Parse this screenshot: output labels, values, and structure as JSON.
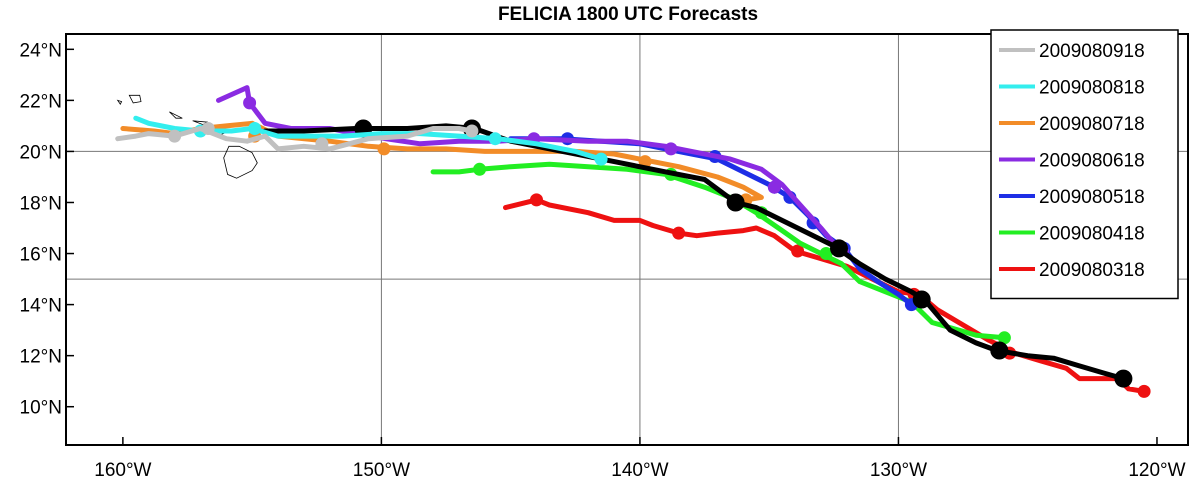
{
  "map": {
    "title": "FELICIA 1800 UTC Forecasts",
    "lon_range": [
      -162.2,
      -118.8
    ],
    "lat_range": [
      8.5,
      24.6
    ],
    "grid_lons": [
      -150,
      -140,
      -130
    ],
    "grid_lats": [
      15,
      20
    ],
    "lon_ticks": [
      {
        "value": -160,
        "label": "160°W"
      },
      {
        "value": -150,
        "label": "150°W"
      },
      {
        "value": -140,
        "label": "140°W"
      },
      {
        "value": -130,
        "label": "130°W"
      },
      {
        "value": -120,
        "label": "120°W"
      }
    ],
    "lat_ticks": [
      {
        "value": 10,
        "label": "10°N"
      },
      {
        "value": 12,
        "label": "12°N"
      },
      {
        "value": 14,
        "label": "14°N"
      },
      {
        "value": 16,
        "label": "16°N"
      },
      {
        "value": 18,
        "label": "18°N"
      },
      {
        "value": 20,
        "label": "20°N"
      },
      {
        "value": 22,
        "label": "22°N"
      },
      {
        "value": 24,
        "label": "24°N"
      }
    ],
    "legend_position": "top-right",
    "legend": [
      {
        "label": "2009080918",
        "color": "#c0c0c0"
      },
      {
        "label": "2009080818",
        "color": "#33eeee"
      },
      {
        "label": "2009080718",
        "color": "#f28c28"
      },
      {
        "label": "2009080618",
        "color": "#8a2be2"
      },
      {
        "label": "2009080518",
        "color": "#1e2ee6"
      },
      {
        "label": "2009080418",
        "color": "#22ee22"
      },
      {
        "label": "2009080318",
        "color": "#ee1111"
      }
    ],
    "tracks": [
      {
        "color": "#ee1111",
        "points": [
          [
            -145.2,
            17.8
          ],
          [
            -144,
            18.1
          ],
          [
            -143.5,
            17.9
          ],
          [
            -142,
            17.6
          ],
          [
            -141,
            17.3
          ],
          [
            -140,
            17.3
          ],
          [
            -139.5,
            17.1
          ],
          [
            -138.5,
            16.8
          ],
          [
            -137.8,
            16.7
          ],
          [
            -137,
            16.8
          ],
          [
            -136,
            16.9
          ],
          [
            -135.5,
            17
          ],
          [
            -134.8,
            16.7
          ],
          [
            -134,
            16.1
          ],
          [
            -133,
            15.8
          ],
          [
            -132,
            15.5
          ],
          [
            -131,
            15
          ],
          [
            -130,
            14.5
          ],
          [
            -129.2,
            14.4
          ],
          [
            -128.5,
            13.8
          ],
          [
            -127.5,
            13.2
          ],
          [
            -126.5,
            12.6
          ],
          [
            -125.5,
            12.1
          ],
          [
            -124.5,
            11.8
          ],
          [
            -123.5,
            11.5
          ],
          [
            -123,
            11.1
          ],
          [
            -122,
            11.1
          ],
          [
            -121.5,
            11.1
          ],
          [
            -121.1,
            10.7
          ],
          [
            -120.5,
            10.6
          ]
        ],
        "dots": [
          [
            -144,
            18.1
          ],
          [
            -138.5,
            16.8
          ],
          [
            -133.9,
            16.1
          ],
          [
            -129.4,
            14.4
          ],
          [
            -125.7,
            12.1
          ],
          [
            -120.5,
            10.6
          ]
        ]
      },
      {
        "color": "#22ee22",
        "points": [
          [
            -148,
            19.2
          ],
          [
            -147,
            19.2
          ],
          [
            -146.2,
            19.3
          ],
          [
            -145,
            19.4
          ],
          [
            -143.5,
            19.5
          ],
          [
            -142,
            19.4
          ],
          [
            -140.5,
            19.3
          ],
          [
            -139,
            19.1
          ],
          [
            -137.5,
            18.6
          ],
          [
            -136.5,
            18.2
          ],
          [
            -135.5,
            17.6
          ],
          [
            -134.5,
            16.9
          ],
          [
            -133.8,
            16.4
          ],
          [
            -133,
            16
          ],
          [
            -132.2,
            15.6
          ],
          [
            -131.5,
            14.9
          ],
          [
            -130.5,
            14.5
          ],
          [
            -129.5,
            14.1
          ],
          [
            -128.7,
            13.3
          ],
          [
            -128,
            13.1
          ],
          [
            -127,
            12.8
          ],
          [
            -125.9,
            12.7
          ]
        ],
        "dots": [
          [
            -146.2,
            19.3
          ],
          [
            -138.8,
            19.1
          ],
          [
            -135.3,
            17.6
          ],
          [
            -132.8,
            16
          ],
          [
            -125.9,
            12.7
          ]
        ]
      },
      {
        "color": "#1e2ee6",
        "points": [
          [
            -145,
            20.5
          ],
          [
            -144,
            20.5
          ],
          [
            -143,
            20.5
          ],
          [
            -141.5,
            20.4
          ],
          [
            -140,
            20.3
          ],
          [
            -139,
            20.1
          ],
          [
            -138,
            19.9
          ],
          [
            -137,
            19.7
          ],
          [
            -136,
            19.2
          ],
          [
            -135,
            18.7
          ],
          [
            -134.2,
            18.2
          ],
          [
            -133.5,
            17.5
          ],
          [
            -132.8,
            16.7
          ],
          [
            -132.1,
            16.2
          ],
          [
            -131.5,
            15.4
          ],
          [
            -130.8,
            14.9
          ],
          [
            -130,
            14.4
          ],
          [
            -129.5,
            14
          ]
        ],
        "dots": [
          [
            -142.8,
            20.5
          ],
          [
            -137.1,
            19.8
          ],
          [
            -134.8,
            18.6
          ],
          [
            -134.2,
            18.2
          ],
          [
            -133.3,
            17.2
          ],
          [
            -132.1,
            16.2
          ],
          [
            -129.5,
            14
          ]
        ]
      },
      {
        "color": "#8a2be2",
        "points": [
          [
            -156.3,
            22
          ],
          [
            -155.2,
            22.5
          ],
          [
            -155.1,
            21.9
          ],
          [
            -154.5,
            21.1
          ],
          [
            -153.5,
            20.9
          ],
          [
            -152,
            20.9
          ],
          [
            -150.5,
            20.6
          ],
          [
            -148.5,
            20.3
          ],
          [
            -147,
            20.4
          ],
          [
            -145.5,
            20.4
          ],
          [
            -144,
            20.5
          ],
          [
            -142,
            20.4
          ],
          [
            -140.5,
            20.4
          ],
          [
            -139,
            20.2
          ],
          [
            -138,
            20
          ],
          [
            -136.5,
            19.7
          ],
          [
            -135.3,
            19.3
          ],
          [
            -134.5,
            18.7
          ],
          [
            -133.8,
            17.9
          ],
          [
            -133,
            17
          ],
          [
            -132.5,
            16.4
          ],
          [
            -132,
            16.1
          ]
        ],
        "dots": [
          [
            -155.1,
            21.9
          ],
          [
            -144.1,
            20.5
          ],
          [
            -138.8,
            20.1
          ],
          [
            -134.8,
            18.6
          ],
          [
            -132.2,
            16.2
          ]
        ]
      },
      {
        "color": "#f28c28",
        "points": [
          [
            -160,
            20.9
          ],
          [
            -158.8,
            20.8
          ],
          [
            -158,
            20.7
          ],
          [
            -157,
            20.9
          ],
          [
            -156,
            21
          ],
          [
            -155,
            21.1
          ],
          [
            -154,
            20.6
          ],
          [
            -152,
            20.4
          ],
          [
            -150.5,
            20.2
          ],
          [
            -149,
            20.1
          ],
          [
            -147.5,
            20.1
          ],
          [
            -146,
            20
          ],
          [
            -144,
            20
          ],
          [
            -142.5,
            20
          ],
          [
            -141,
            19.9
          ],
          [
            -140,
            19.7
          ],
          [
            -138.5,
            19.4
          ],
          [
            -137,
            19
          ],
          [
            -136,
            18.6
          ],
          [
            -135.3,
            18.2
          ],
          [
            -135.9,
            18.1
          ]
        ],
        "dots": [
          [
            -154.9,
            20.6
          ],
          [
            -149.9,
            20.1
          ],
          [
            -139.8,
            19.6
          ],
          [
            -135.9,
            18.1
          ]
        ]
      },
      {
        "color": "#000000",
        "points": [
          [
            -154.5,
            20.8
          ],
          [
            -153,
            20.8
          ],
          [
            -151,
            20.9
          ],
          [
            -149,
            20.9
          ],
          [
            -147.5,
            21
          ],
          [
            -146.4,
            20.9
          ],
          [
            -145,
            20.4
          ],
          [
            -143,
            20
          ],
          [
            -141,
            19.6
          ],
          [
            -139,
            19.2
          ],
          [
            -137.5,
            18.9
          ],
          [
            -136.3,
            18
          ],
          [
            -135.5,
            17.8
          ],
          [
            -134.5,
            17.3
          ],
          [
            -133.5,
            16.8
          ],
          [
            -132.5,
            16.3
          ],
          [
            -131.5,
            15.6
          ],
          [
            -130.5,
            15
          ],
          [
            -129.5,
            14.5
          ],
          [
            -129,
            14.2
          ],
          [
            -128.5,
            13.6
          ],
          [
            -128,
            13
          ],
          [
            -127,
            12.5
          ],
          [
            -126.2,
            12.2
          ],
          [
            -125,
            12
          ],
          [
            -124,
            11.9
          ],
          [
            -123,
            11.6
          ],
          [
            -122,
            11.3
          ],
          [
            -121.3,
            11.1
          ]
        ],
        "dots": [
          [
            -150.7,
            20.9
          ],
          [
            -146.5,
            20.9
          ],
          [
            -136.3,
            18
          ],
          [
            -132.3,
            16.2
          ],
          [
            -129.1,
            14.2
          ],
          [
            -126.1,
            12.2
          ],
          [
            -121.3,
            11.1
          ]
        ],
        "dot_r": 9
      },
      {
        "color": "#33eeee",
        "points": [
          [
            -159.5,
            21.3
          ],
          [
            -159,
            21.1
          ],
          [
            -158,
            20.9
          ],
          [
            -157,
            20.8
          ],
          [
            -155.8,
            20.8
          ],
          [
            -155,
            20.9
          ],
          [
            -154,
            20.6
          ],
          [
            -153,
            20.6
          ],
          [
            -151.5,
            20.6
          ],
          [
            -150,
            20.7
          ],
          [
            -148.5,
            20.7
          ],
          [
            -147,
            20.6
          ],
          [
            -145.5,
            20.5
          ],
          [
            -144,
            20.3
          ],
          [
            -142.5,
            20
          ],
          [
            -141.5,
            19.7
          ]
        ],
        "dots": [
          [
            -157,
            20.8
          ],
          [
            -154.9,
            20.9
          ],
          [
            -145.6,
            20.5
          ],
          [
            -141.5,
            19.7
          ]
        ]
      },
      {
        "color": "#c0c0c0",
        "points": [
          [
            -160.2,
            20.5
          ],
          [
            -159.5,
            20.6
          ],
          [
            -159,
            20.7
          ],
          [
            -158,
            20.6
          ],
          [
            -157,
            20.9
          ],
          [
            -156,
            20.5
          ],
          [
            -155.2,
            20.4
          ],
          [
            -154.5,
            20.6
          ],
          [
            -154,
            20.1
          ],
          [
            -153,
            20.2
          ],
          [
            -152,
            20.1
          ],
          [
            -150.5,
            20.5
          ],
          [
            -149,
            20.6
          ],
          [
            -148,
            20.9
          ],
          [
            -147,
            20.9
          ],
          [
            -146.5,
            20.8
          ]
        ],
        "dots": [
          [
            -158,
            20.6
          ],
          [
            -156.7,
            20.9
          ],
          [
            -152.3,
            20.3
          ],
          [
            -146.5,
            20.8
          ]
        ]
      }
    ],
    "islands": [
      [
        [
          -155.9,
          20.2
        ],
        [
          -155.5,
          20.2
        ],
        [
          -155.0,
          19.95
        ],
        [
          -154.8,
          19.55
        ],
        [
          -155.0,
          19.25
        ],
        [
          -155.6,
          18.95
        ],
        [
          -155.95,
          19.1
        ],
        [
          -156.1,
          19.75
        ],
        [
          -155.9,
          20.2
        ]
      ],
      [
        [
          -156.7,
          21.0
        ],
        [
          -156.4,
          20.95
        ],
        [
          -156.0,
          20.75
        ],
        [
          -156.35,
          20.6
        ],
        [
          -156.7,
          20.8
        ],
        [
          -156.7,
          21.0
        ]
      ],
      [
        [
          -157.3,
          21.2
        ],
        [
          -156.75,
          21.15
        ],
        [
          -156.9,
          21.05
        ],
        [
          -157.3,
          21.2
        ]
      ],
      [
        [
          -158.2,
          21.55
        ],
        [
          -157.7,
          21.3
        ],
        [
          -157.95,
          21.3
        ],
        [
          -158.2,
          21.55
        ]
      ],
      [
        [
          -159.75,
          22.2
        ],
        [
          -159.35,
          22.2
        ],
        [
          -159.3,
          21.95
        ],
        [
          -159.6,
          21.9
        ],
        [
          -159.75,
          22.2
        ]
      ],
      [
        [
          -160.2,
          22.0
        ],
        [
          -160.05,
          21.95
        ],
        [
          -160.1,
          21.85
        ],
        [
          -160.2,
          22.0
        ]
      ]
    ]
  }
}
